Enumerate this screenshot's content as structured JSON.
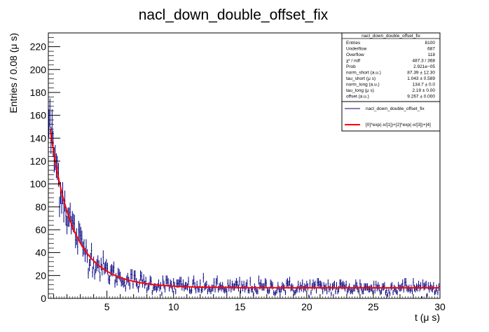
{
  "chart_data": {
    "type": "scatter",
    "title": "nacl_down_double_offset_fix",
    "xlabel": "t (μ s)",
    "ylabel": "Entries / 0.08 (μ s)",
    "xlim": [
      0.6,
      30
    ],
    "ylim": [
      0,
      232
    ],
    "x_ticks": [
      5,
      10,
      15,
      20,
      25,
      30
    ],
    "y_ticks": [
      0,
      20,
      40,
      60,
      80,
      100,
      120,
      140,
      160,
      180,
      200,
      220
    ],
    "grid": false,
    "legend_position": "top-right",
    "stats_box": {
      "title": "nacl_down_double_offset_fix",
      "rows": [
        {
          "label": "Entries",
          "value": "8100"
        },
        {
          "label": "Underflow",
          "value": "687"
        },
        {
          "label": "Overflow",
          "value": "118"
        },
        {
          "label": "χ² / ndf",
          "value": "487.3 / 368"
        },
        {
          "label": "Prob",
          "value": "2.921e−05"
        },
        {
          "label": "norm_short (a.u.)",
          "value": "87.39 ± 12.30"
        },
        {
          "label": "tau_short (μ s)",
          "value": "1.043 ± 0.589"
        },
        {
          "label": "norm_long (a.u.)",
          "value": "134.7 ± 0.0"
        },
        {
          "label": "tau_long (μ s)",
          "value": "2.19 ± 0.00"
        },
        {
          "label": "offset (a.u.)",
          "value": "9.267 ± 0.000"
        }
      ]
    },
    "legend": [
      {
        "label": "nacl_down_double_offset_fix",
        "color": "#000080",
        "kind": "data"
      },
      {
        "label": "[0]*exp(-x/[1])+[2]*exp(-x/[3])+[4]",
        "color": "#ff0000",
        "kind": "fit"
      }
    ],
    "series": [
      {
        "name": "nacl_down_double_offset_fix",
        "color": "#000080",
        "bin_width": 0.08,
        "x_start": 0.64,
        "x_end": 29.96,
        "values_sampled": {
          "x": [
            0.7,
            0.9,
            1.1,
            1.3,
            1.5,
            2.0,
            2.5,
            3.0,
            3.5,
            4.0,
            5.0,
            6.0,
            7.0,
            8.0,
            10.0,
            12.0,
            15.0,
            20.0,
            25.0,
            29.9
          ],
          "y": [
            190,
            148,
            128,
            112,
            100,
            80,
            62,
            48,
            38,
            31,
            21,
            16,
            13,
            11,
            10,
            9,
            10,
            9,
            9,
            10
          ]
        }
      },
      {
        "name": "[0]*exp(-x/[1])+[2]*exp(-x/[3])+[4]",
        "color": "#ff0000",
        "params": {
          "norm_short": 87.39,
          "tau_short": 1.043,
          "norm_long": 134.7,
          "tau_long": 2.19,
          "offset": 9.267
        }
      }
    ]
  }
}
